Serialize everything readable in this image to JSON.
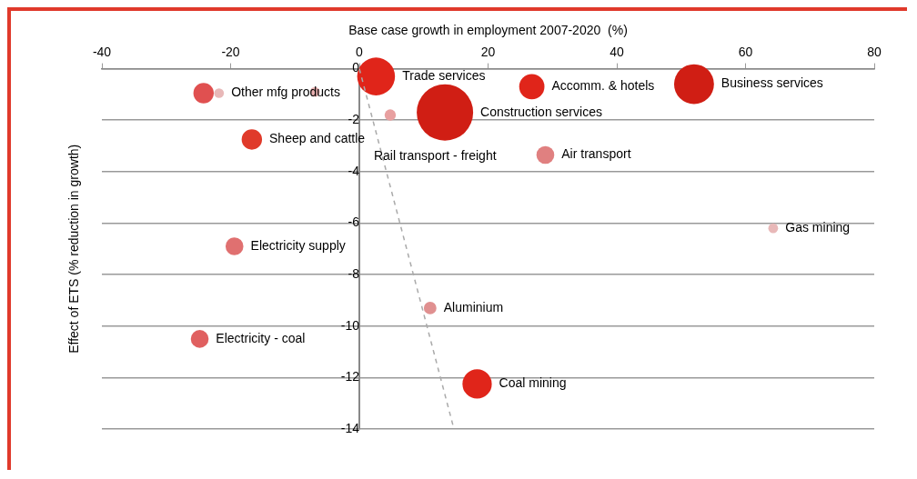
{
  "chart_data": {
    "type": "bubble",
    "xlabel": "Base case growth in employment 2007-2020  (%)",
    "ylabel": "Effect of ETS (% reduction in growth)",
    "xlim": [
      -40,
      80
    ],
    "xticks": [
      -40,
      -20,
      0,
      20,
      40,
      60,
      80
    ],
    "ylim": [
      -14,
      0
    ],
    "yticks": [
      -14,
      -12,
      -10,
      -8,
      -6,
      -4,
      -2,
      0
    ],
    "grid": "y",
    "legend": false,
    "series": [
      {
        "x": [
          2.6,
          26.8,
          52,
          13.3,
          4.8,
          28.9,
          64.3,
          -24.2,
          -21.8,
          -6.9,
          -16.7,
          -19.4,
          -24.8,
          11,
          18.3
        ],
        "values": [
          -0.3,
          -0.7,
          -0.6,
          -1.7,
          -1.8,
          -3.35,
          -6.2,
          -0.95,
          -0.95,
          -0.9,
          -2.75,
          -6.9,
          -10.5,
          -9.3,
          -12.25
        ],
        "sizes": [
          0.45,
          0.2,
          0.5,
          1,
          0.04,
          0.1,
          0.03,
          0.13,
          0.03,
          0.03,
          0.13,
          0.1,
          0.1,
          0.05,
          0.27
        ],
        "colors": [
          "#e0251a",
          "#e0251a",
          "#d01e14",
          "#d01e14",
          "#e8a0a0",
          "#e08080",
          "#e8b8b8",
          "#e05050",
          "#e8b8b8",
          "#e8b0b0",
          "#e03a2a",
          "#e07070",
          "#e06060",
          "#e09090",
          "#e0251a"
        ]
      },
      {
        "type": "line",
        "x": [
          0,
          14.7
        ],
        "values": [
          0,
          -14
        ],
        "color": "#aaaaaa",
        "line_style": "dashed",
        "marker": "none"
      }
    ],
    "annotations": [
      {
        "text": "Trade services",
        "x": 2.6,
        "y": -0.3
      },
      {
        "text": "Accomm. & hotels",
        "x": 26.8,
        "y": -0.7
      },
      {
        "text": "Business services",
        "x": 52,
        "y": -0.6
      },
      {
        "text": "Construction services",
        "x": 13.3,
        "y": -1.7
      },
      {
        "text": "Rail transport - freight",
        "x": 4.8,
        "y": -1.8
      },
      {
        "text": "Air transport",
        "x": 28.9,
        "y": -3.35
      },
      {
        "text": "Gas mining",
        "x": 64.3,
        "y": -6.2
      },
      {
        "text": "Other mfg products",
        "x": -21.8,
        "y": -0.95
      },
      {
        "text": "Sheep and cattle",
        "x": -16.7,
        "y": -2.75
      },
      {
        "text": "Electricity supply",
        "x": -19.4,
        "y": -6.9
      },
      {
        "text": "Electricity - coal",
        "x": -24.8,
        "y": -10.5
      },
      {
        "text": "Aluminium",
        "x": 11,
        "y": -9.3
      },
      {
        "text": "Coal mining",
        "x": 18.3,
        "y": -12.25
      }
    ]
  }
}
